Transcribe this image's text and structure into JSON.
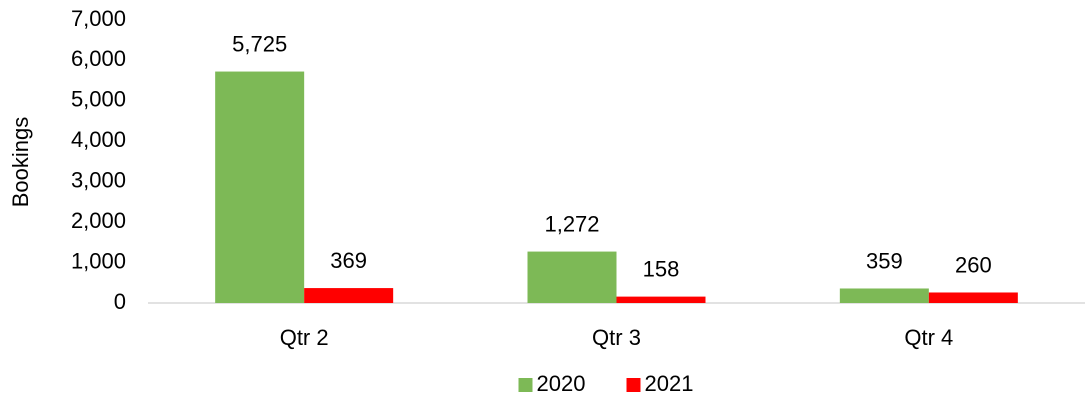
{
  "chart_data": {
    "type": "bar",
    "y_label": "Bookings",
    "categories": [
      "Qtr 2",
      "Qtr 3",
      "Qtr 4"
    ],
    "series": [
      {
        "name": "2020",
        "color": "#7db956",
        "values": [
          5725,
          1272,
          359
        ],
        "value_labels": [
          "5,725",
          "1,272",
          "359"
        ]
      },
      {
        "name": "2021",
        "color": "#ff0000",
        "values": [
          369,
          158,
          260
        ],
        "value_labels": [
          "369",
          "158",
          "260"
        ]
      }
    ],
    "ylim": [
      0,
      7000
    ],
    "yticks": [
      0,
      {
        "value": 1000,
        "label": "1,000"
      },
      {
        "value": 2000,
        "label": "2,000"
      },
      {
        "value": 3000,
        "label": "3,000"
      },
      {
        "value": 4000,
        "label": "4,000"
      },
      {
        "value": 5000,
        "label": "5,000"
      },
      {
        "value": 6000,
        "label": "6,000"
      },
      {
        "value": 7000,
        "label": "7,000"
      }
    ],
    "grid": false,
    "legend": "bottom"
  }
}
